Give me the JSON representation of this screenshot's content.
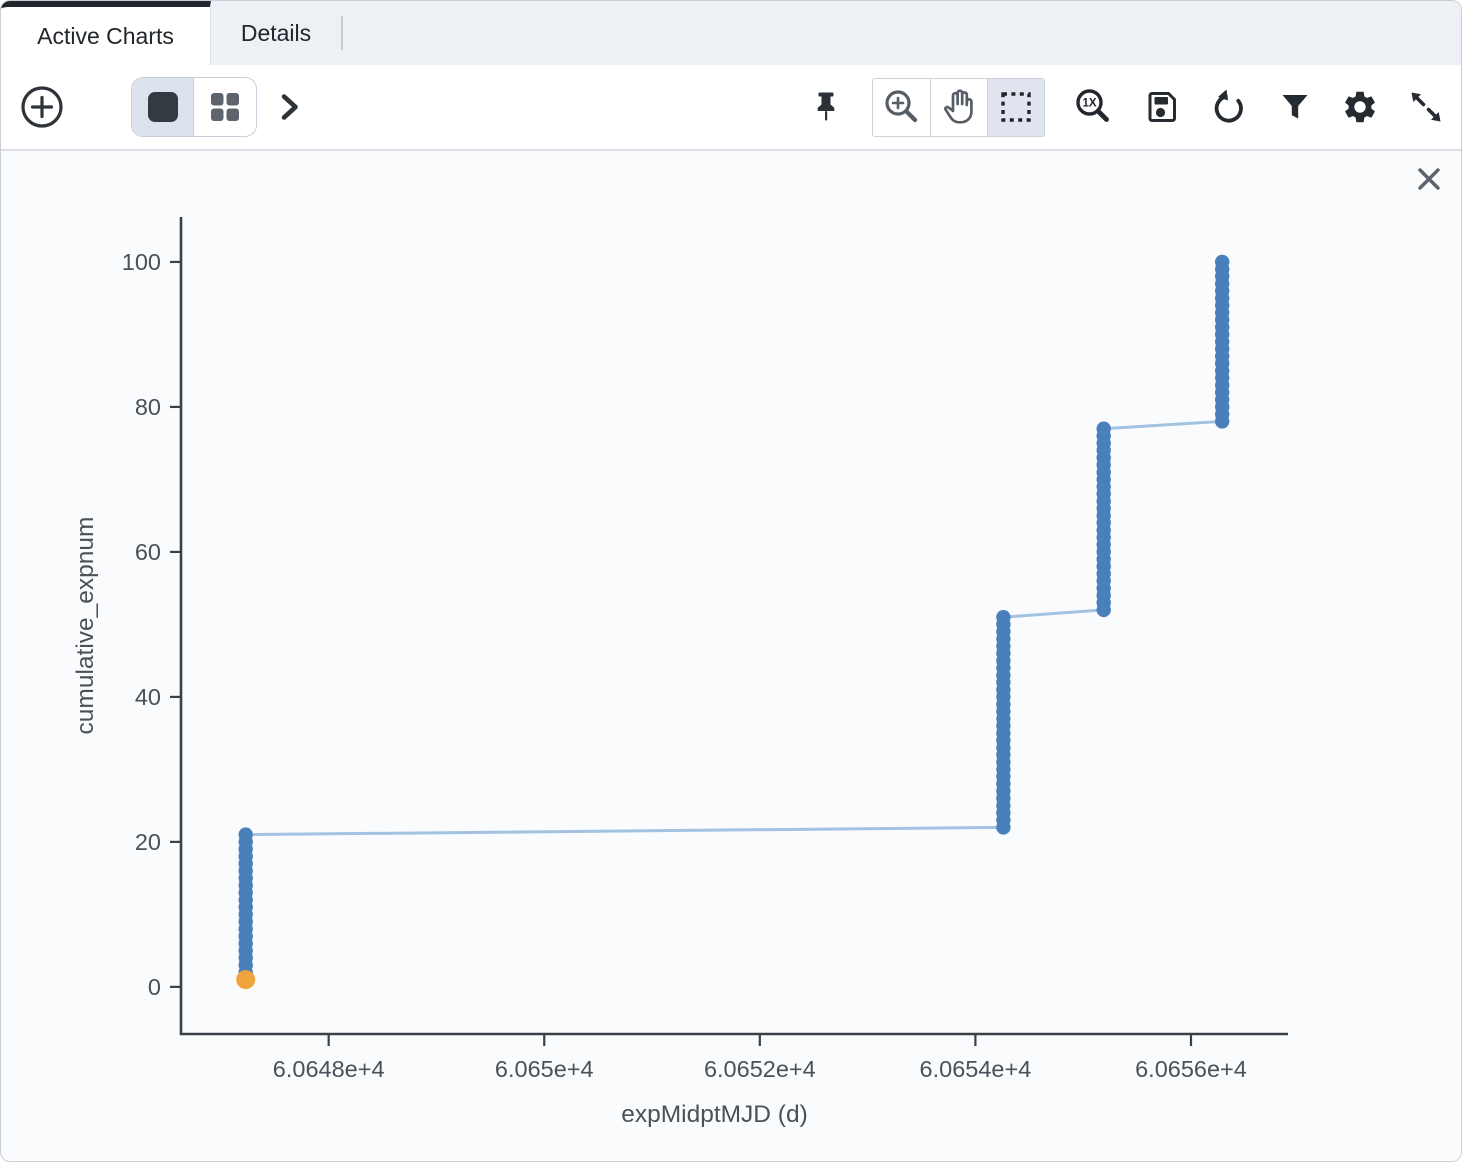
{
  "tabs": [
    {
      "label": "Active Charts",
      "active": true
    },
    {
      "label": "Details",
      "active": false
    }
  ],
  "toolbar": {
    "left_icons": [
      "add-chart",
      "single-chart-view",
      "multi-chart-view",
      "show-more"
    ],
    "right_icons": [
      "pin-chart",
      "zoom-mode",
      "pan-mode",
      "select-mode",
      "zoom-original-1x",
      "save-chart",
      "restore-chart",
      "filter-chart",
      "chart-settings",
      "expand-chart"
    ],
    "active_layout": "single-chart-view",
    "active_mode": "select-mode"
  },
  "icons": {
    "add_chart": "plus-circle",
    "single_chart_view": "filled-square",
    "multi_chart_view": "four-squares-grid",
    "show_more": "chevron-right",
    "pin": "pushpin",
    "zoom_mode": "magnifier-plus",
    "pan_mode": "hand",
    "select_mode": "dashed-rectangle",
    "zoom_original": "magnifier-1x",
    "save": "floppy-disk",
    "restore": "circular-arrow",
    "filter": "funnel",
    "settings": "gear",
    "expand": "diagonal-double-arrow",
    "close": "x-cross"
  },
  "chart_data": {
    "type": "scatter",
    "mode": "lines+markers",
    "title": "",
    "xlabel": "expMidptMJD (d)",
    "ylabel": "cumulative_expnum",
    "x_ticks": [
      {
        "label": "6.0648e+4",
        "value": 60648
      },
      {
        "label": "6.065e+4",
        "value": 60650
      },
      {
        "label": "6.0652e+4",
        "value": 60652
      },
      {
        "label": "6.0654e+4",
        "value": 60654
      },
      {
        "label": "6.0656e+4",
        "value": 60656
      }
    ],
    "y_ticks": [
      0,
      20,
      40,
      60,
      80,
      100
    ],
    "x_range": [
      60646.63,
      60656.9
    ],
    "y_range": [
      -6.5,
      106.2
    ],
    "grid": false,
    "legend": "none",
    "nights": [
      {
        "mjd": 60647.23,
        "exp_from": 1,
        "exp_to": 21
      },
      {
        "mjd": 60654.26,
        "exp_from": 22,
        "exp_to": 51
      },
      {
        "mjd": 60655.19,
        "exp_from": 52,
        "exp_to": 77
      },
      {
        "mjd": 60656.29,
        "exp_from": 78,
        "exp_to": 100
      }
    ],
    "highlighted_point": {
      "mjd": 60647.23,
      "exp": 1
    },
    "colors": {
      "marker": "#4a80ba",
      "marker_opacity": 0.5,
      "line": "#a2c2e2",
      "highlight": "#f2a43c",
      "axis": "#3a4048",
      "tick_text": "#4a515a"
    }
  }
}
